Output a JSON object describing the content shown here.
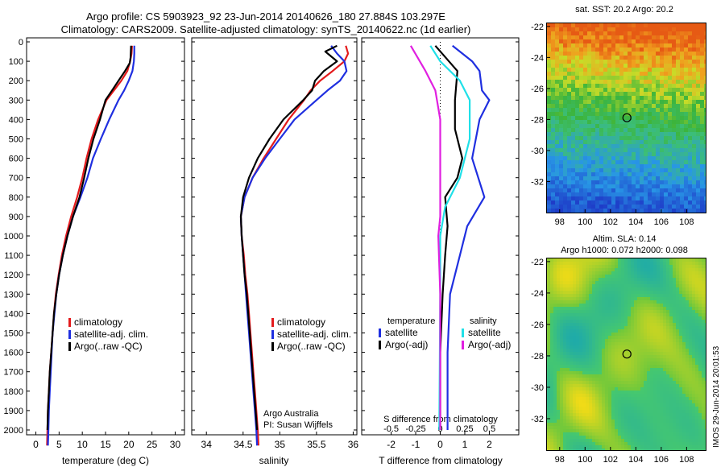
{
  "header": {
    "title_line1": "Argo profile: CS 5903923_92 23-Jun-2014 20140626_180 27.884S 103.297E",
    "title_line2": "Climatology: CARS2009. Satellite-adjusted climatology: synTS_20140622.nc (1d earlier)"
  },
  "colors": {
    "climatology": "#e41a1c",
    "satellite": "#1f2fe0",
    "argo": "#000000",
    "argo_salinity": "#e020e0",
    "satellite_salinity": "#20e0e8"
  },
  "chart_data": [
    {
      "type": "line",
      "name": "temperature-profile",
      "xlabel": "temperature (deg C)",
      "xlim": [
        -2,
        32
      ],
      "xticks": [
        "0",
        "5",
        "10",
        "15",
        "20",
        "25",
        "30"
      ],
      "ylim": [
        0,
        2080
      ],
      "yticks": [
        "0",
        "100",
        "200",
        "300",
        "400",
        "500",
        "600",
        "700",
        "800",
        "900",
        "1000",
        "1100",
        "1200",
        "1300",
        "1400",
        "1500",
        "1600",
        "1700",
        "1800",
        "1900",
        "2000"
      ],
      "legend": [
        "climatology",
        "satellite-adj. clim.",
        "Argo(..raw -QC)"
      ],
      "legend_position": "bottom-right",
      "series": [
        {
          "name": "climatology",
          "color": "#e41a1c",
          "values": [
            [
              20.7,
              20
            ],
            [
              20.6,
              60
            ],
            [
              20.3,
              100
            ],
            [
              19.7,
              150
            ],
            [
              18.4,
              200
            ],
            [
              16.8,
              250
            ],
            [
              15.2,
              300
            ],
            [
              13.4,
              400
            ],
            [
              12.0,
              500
            ],
            [
              10.9,
              600
            ],
            [
              10.0,
              700
            ],
            [
              8.9,
              800
            ],
            [
              7.6,
              900
            ],
            [
              6.5,
              1000
            ],
            [
              5.6,
              1100
            ],
            [
              4.9,
              1200
            ],
            [
              4.3,
              1300
            ],
            [
              3.9,
              1400
            ],
            [
              3.6,
              1500
            ],
            [
              3.3,
              1600
            ],
            [
              3.0,
              1700
            ],
            [
              2.8,
              1800
            ],
            [
              2.6,
              1900
            ],
            [
              2.5,
              2000
            ],
            [
              2.4,
              2080
            ]
          ]
        },
        {
          "name": "satellite-adj. clim.",
          "color": "#1f2fe0",
          "values": [
            [
              21.2,
              20
            ],
            [
              21.2,
              60
            ],
            [
              21.1,
              100
            ],
            [
              20.8,
              150
            ],
            [
              20.0,
              200
            ],
            [
              19.0,
              250
            ],
            [
              17.8,
              300
            ],
            [
              15.8,
              400
            ],
            [
              14.0,
              500
            ],
            [
              12.3,
              600
            ],
            [
              11.1,
              700
            ],
            [
              9.6,
              800
            ],
            [
              8.0,
              900
            ],
            [
              6.8,
              1000
            ],
            [
              5.8,
              1100
            ],
            [
              5.0,
              1200
            ],
            [
              4.4,
              1300
            ],
            [
              4.0,
              1400
            ],
            [
              3.6,
              1500
            ],
            [
              3.4,
              1600
            ],
            [
              3.2,
              1700
            ],
            [
              3.0,
              1800
            ],
            [
              2.8,
              1900
            ],
            [
              2.7,
              2000
            ],
            [
              2.6,
              2080
            ]
          ]
        },
        {
          "name": "Argo(..raw -QC)",
          "color": "#000000",
          "values": [
            [
              20.5,
              20
            ],
            [
              20.4,
              80
            ],
            [
              20.2,
              110
            ],
            [
              19.2,
              150
            ],
            [
              17.8,
              200
            ],
            [
              16.4,
              250
            ],
            [
              15.0,
              300
            ],
            [
              13.8,
              400
            ],
            [
              12.4,
              500
            ],
            [
              11.3,
              600
            ],
            [
              10.4,
              700
            ],
            [
              9.4,
              800
            ],
            [
              8.0,
              900
            ],
            [
              6.8,
              1000
            ],
            [
              5.8,
              1100
            ],
            [
              5.0,
              1200
            ],
            [
              4.4,
              1300
            ],
            [
              3.9,
              1400
            ],
            [
              3.6,
              1500
            ],
            [
              3.3,
              1600
            ],
            [
              3.0,
              1700
            ],
            [
              2.8,
              1800
            ],
            [
              2.6,
              1900
            ],
            [
              2.5,
              2000
            ]
          ]
        }
      ]
    },
    {
      "type": "line",
      "name": "salinity-profile",
      "xlabel": "salinity",
      "xlim": [
        33.8,
        36.05
      ],
      "xticks": [
        "34",
        "34.5",
        "35",
        "35.5",
        "36"
      ],
      "ylim": [
        0,
        2080
      ],
      "legend": [
        "climatology",
        "satellite-adj. clim.",
        "Argo(..raw -QC)"
      ],
      "legend_position": "bottom-right",
      "annotation": [
        "Argo Australia",
        "PI: Susan Wijffels"
      ],
      "series": [
        {
          "name": "climatology",
          "color": "#e41a1c",
          "values": [
            [
              35.9,
              20
            ],
            [
              35.93,
              60
            ],
            [
              35.88,
              100
            ],
            [
              35.72,
              150
            ],
            [
              35.55,
              200
            ],
            [
              35.42,
              250
            ],
            [
              35.33,
              300
            ],
            [
              35.12,
              400
            ],
            [
              34.95,
              500
            ],
            [
              34.78,
              600
            ],
            [
              34.63,
              700
            ],
            [
              34.52,
              800
            ],
            [
              34.47,
              900
            ],
            [
              34.48,
              1000
            ],
            [
              34.51,
              1100
            ],
            [
              34.53,
              1200
            ],
            [
              34.56,
              1300
            ],
            [
              34.58,
              1400
            ],
            [
              34.6,
              1500
            ],
            [
              34.62,
              1600
            ],
            [
              34.64,
              1700
            ],
            [
              34.66,
              1800
            ],
            [
              34.68,
              1900
            ],
            [
              34.7,
              2000
            ],
            [
              34.71,
              2080
            ]
          ]
        },
        {
          "name": "satellite-adj. clim.",
          "color": "#1f2fe0",
          "values": [
            [
              35.7,
              20
            ],
            [
              35.78,
              60
            ],
            [
              35.88,
              100
            ],
            [
              35.91,
              150
            ],
            [
              35.82,
              200
            ],
            [
              35.65,
              250
            ],
            [
              35.5,
              300
            ],
            [
              35.2,
              400
            ],
            [
              35.0,
              500
            ],
            [
              34.8,
              600
            ],
            [
              34.63,
              700
            ],
            [
              34.52,
              800
            ],
            [
              34.47,
              900
            ],
            [
              34.48,
              1000
            ],
            [
              34.5,
              1100
            ],
            [
              34.52,
              1200
            ],
            [
              34.54,
              1300
            ],
            [
              34.56,
              1400
            ],
            [
              34.58,
              1500
            ],
            [
              34.6,
              1600
            ],
            [
              34.62,
              1700
            ],
            [
              34.64,
              1800
            ],
            [
              34.66,
              1900
            ],
            [
              34.68,
              2000
            ],
            [
              34.69,
              2080
            ]
          ]
        },
        {
          "name": "Argo(..raw -QC)",
          "color": "#000000",
          "values": [
            [
              35.78,
              20
            ],
            [
              35.62,
              50
            ],
            [
              35.78,
              100
            ],
            [
              35.6,
              150
            ],
            [
              35.48,
              200
            ],
            [
              35.44,
              250
            ],
            [
              35.32,
              300
            ],
            [
              35.05,
              400
            ],
            [
              34.86,
              500
            ],
            [
              34.7,
              600
            ],
            [
              34.58,
              700
            ],
            [
              34.5,
              800
            ],
            [
              34.47,
              900
            ],
            [
              34.48,
              1000
            ],
            [
              34.5,
              1100
            ],
            [
              34.52,
              1200
            ],
            [
              34.55,
              1300
            ],
            [
              34.57,
              1400
            ],
            [
              34.59,
              1500
            ],
            [
              34.61,
              1600
            ],
            [
              34.63,
              1700
            ],
            [
              34.65,
              1800
            ],
            [
              34.67,
              1900
            ],
            [
              34.69,
              2000
            ]
          ]
        }
      ]
    },
    {
      "type": "line",
      "name": "difference-from-climatology",
      "xlabel": "T difference from climatology",
      "xlabel_top": "S difference from climatology",
      "xlim_T": [
        -3.2,
        3.2
      ],
      "xticks_T": [
        "-2",
        "-1",
        "0",
        "1",
        "2"
      ],
      "xticks_S": [
        "-0.5",
        "-0.25",
        "0",
        "0.25",
        "0.5"
      ],
      "ylim": [
        0,
        2080
      ],
      "legend_temperature_title": "temperature",
      "legend_salinity_title": "salinity",
      "legend": [
        "satellite",
        "Argo(-adj)",
        "satellite",
        "Argo(-adj)"
      ],
      "legend_position": "lower-middle",
      "series": [
        {
          "name": "satellite",
          "quantity": "temperature",
          "color": "#1f2fe0",
          "values": [
            [
              0.5,
              20
            ],
            [
              1.3,
              100
            ],
            [
              1.6,
              150
            ],
            [
              1.7,
              250
            ],
            [
              2.0,
              300
            ],
            [
              1.6,
              400
            ],
            [
              1.3,
              600
            ],
            [
              1.8,
              800
            ],
            [
              1.1,
              950
            ],
            [
              0.8,
              1100
            ],
            [
              0.4,
              1300
            ],
            [
              0.3,
              1600
            ],
            [
              0.3,
              2000
            ]
          ]
        },
        {
          "name": "Argo(-adj)",
          "quantity": "temperature",
          "color": "#000000",
          "values": [
            [
              -0.2,
              20
            ],
            [
              0.7,
              150
            ],
            [
              0.6,
              300
            ],
            [
              0.6,
              450
            ],
            [
              0.9,
              600
            ],
            [
              0.7,
              700
            ],
            [
              0.2,
              800
            ],
            [
              0.3,
              950
            ],
            [
              0.2,
              1100
            ],
            [
              0.1,
              1300
            ],
            [
              0.0,
              1600
            ],
            [
              0.0,
              2000
            ]
          ]
        },
        {
          "name": "satellite",
          "quantity": "salinity",
          "color": "#20e0e8",
          "values": [
            [
              -0.1,
              20
            ],
            [
              0.0,
              100
            ],
            [
              0.2,
              200
            ],
            [
              0.3,
              300
            ],
            [
              0.3,
              500
            ],
            [
              0.2,
              700
            ],
            [
              0.05,
              850
            ],
            [
              0.0,
              1000
            ],
            [
              0.0,
              1300
            ],
            [
              -0.01,
              2000
            ]
          ]
        },
        {
          "name": "Argo(-adj)",
          "quantity": "salinity",
          "color": "#e020e0",
          "values": [
            [
              -0.3,
              20
            ],
            [
              -0.15,
              150
            ],
            [
              -0.05,
              250
            ],
            [
              0.0,
              400
            ],
            [
              0.0,
              700
            ],
            [
              0.0,
              900
            ],
            [
              -0.02,
              1000
            ],
            [
              0.0,
              1300
            ],
            [
              0.0,
              2000
            ]
          ]
        }
      ]
    },
    {
      "type": "heatmap",
      "name": "sst-map",
      "title": "sat. SST: 20.2  Argo: 20.2",
      "xticks": [
        "98",
        "100",
        "102",
        "104",
        "106",
        "108"
      ],
      "yticks": [
        "-22",
        "-24",
        "-26",
        "-28",
        "-30",
        "-32"
      ],
      "xlim": [
        97,
        109.5
      ],
      "ylim": [
        -34,
        -21.8
      ],
      "marker": {
        "lon": 103.297,
        "lat": -27.884
      }
    },
    {
      "type": "heatmap",
      "name": "sla-map",
      "title": "Altim. SLA: 0.14",
      "subtitle": "Argo h1000: 0.072  h2000: 0.098",
      "xticks": [
        "98",
        "100",
        "102",
        "104",
        "106",
        "108"
      ],
      "yticks": [
        "-22",
        "-24",
        "-26",
        "-28",
        "-30",
        "-32"
      ],
      "xlim": [
        97,
        109.5
      ],
      "ylim": [
        -34,
        -21.8
      ],
      "marker": {
        "lon": 103.297,
        "lat": -27.884
      }
    }
  ],
  "stamp": "IMOS 29-Jun-2014 20:01:53"
}
